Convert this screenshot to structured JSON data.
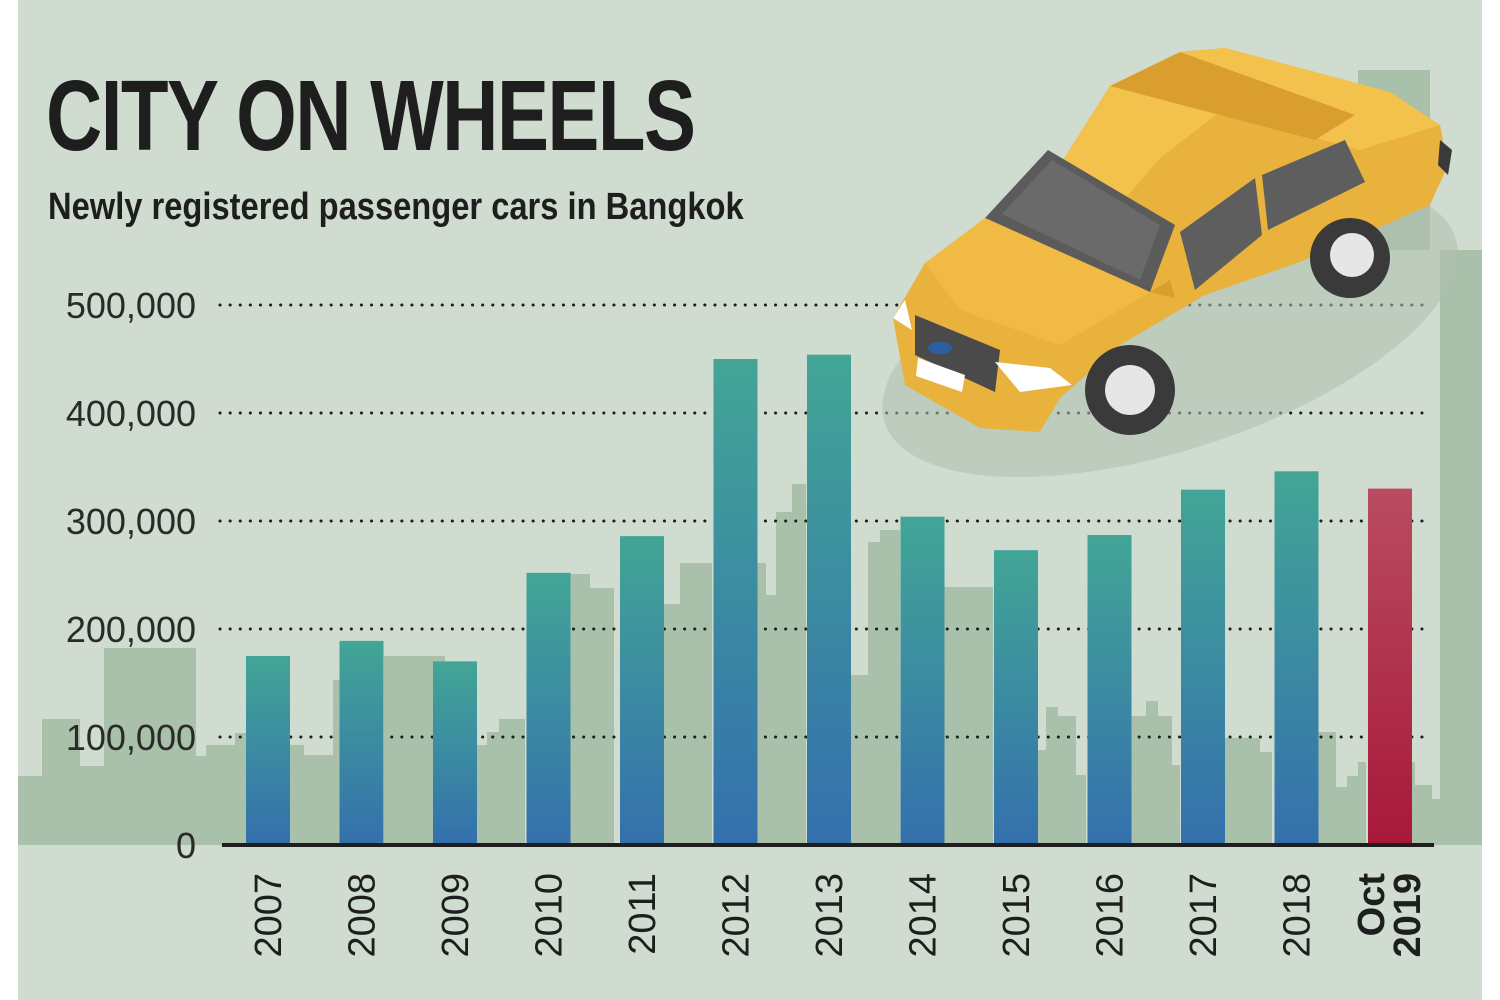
{
  "chart_data": {
    "type": "bar",
    "title": "CITY ON WHEELS",
    "subtitle": "Newly registered passenger cars in Bangkok",
    "categories": [
      "2007",
      "2008",
      "2009",
      "2010",
      "2011",
      "2012",
      "2013",
      "2014",
      "2015",
      "2016",
      "2017",
      "2018",
      "Oct 2019"
    ],
    "values": [
      175000,
      189000,
      170000,
      252000,
      286000,
      450000,
      454000,
      304000,
      273000,
      287000,
      329000,
      346000,
      330000
    ],
    "highlight_index": 12,
    "highlight_label_lines": [
      "Oct",
      "2019"
    ],
    "ylim": [
      0,
      500000
    ],
    "yticks": [
      0,
      100000,
      200000,
      300000,
      400000,
      500000
    ],
    "ytick_labels": [
      "0",
      "100,000",
      "200,000",
      "300,000",
      "400,000",
      "500,000"
    ],
    "grid": true,
    "grid_style": "dotted",
    "xlabel": "",
    "ylabel": "",
    "colors": {
      "background": "#cfdccf",
      "skyline": "#a9c1ab",
      "bar_top": "#42a596",
      "bar_bottom": "#3470ad",
      "highlight_top": "#b94c60",
      "highlight_bottom": "#a8183a",
      "text": "#1e1e1e",
      "car_body": "#e8b23c"
    },
    "illustration": "yellow-car-icon"
  }
}
